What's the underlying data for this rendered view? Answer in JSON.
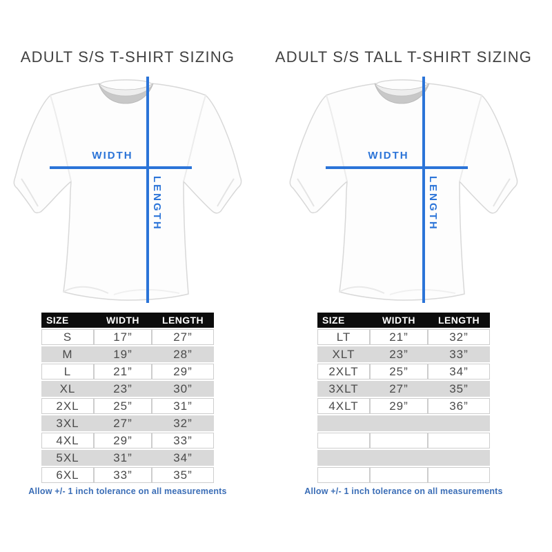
{
  "colors": {
    "accent_blue": "#2b74d8",
    "note_blue": "#3a6db6",
    "table_header_bg": "#0c0c0c",
    "row_alt_gray": "#d9d9d9"
  },
  "panels": [
    {
      "title": "ADULT S/S T-SHIRT SIZING",
      "diagram": {
        "width_label": "WIDTH",
        "length_label": "LENGTH"
      },
      "table": {
        "headers": [
          "SIZE",
          "WIDTH",
          "LENGTH"
        ],
        "rows": [
          [
            "S",
            "17”",
            "27”"
          ],
          [
            "M",
            "19”",
            "28”"
          ],
          [
            "L",
            "21”",
            "29”"
          ],
          [
            "XL",
            "23”",
            "30”"
          ],
          [
            "2XL",
            "25”",
            "31”"
          ],
          [
            "3XL",
            "27”",
            "32”"
          ],
          [
            "4XL",
            "29”",
            "33”"
          ],
          [
            "5XL",
            "31”",
            "34”"
          ],
          [
            "6XL",
            "33”",
            "35”"
          ]
        ]
      },
      "note": "Allow +/- 1 inch tolerance on all measurements"
    },
    {
      "title": "ADULT S/S TALL T-SHIRT SIZING",
      "diagram": {
        "width_label": "WIDTH",
        "length_label": "LENGTH"
      },
      "table": {
        "headers": [
          "SIZE",
          "WIDTH",
          "LENGTH"
        ],
        "rows": [
          [
            "LT",
            "21”",
            "32”"
          ],
          [
            "XLT",
            "23”",
            "33”"
          ],
          [
            "2XLT",
            "25”",
            "34”"
          ],
          [
            "3XLT",
            "27”",
            "35”"
          ],
          [
            "4XLT",
            "29”",
            "36”"
          ],
          [
            "",
            "",
            ""
          ],
          [
            "",
            "",
            ""
          ],
          [
            "",
            "",
            ""
          ],
          [
            "",
            "",
            ""
          ]
        ]
      },
      "note": "Allow +/- 1 inch tolerance on all measurements"
    }
  ]
}
